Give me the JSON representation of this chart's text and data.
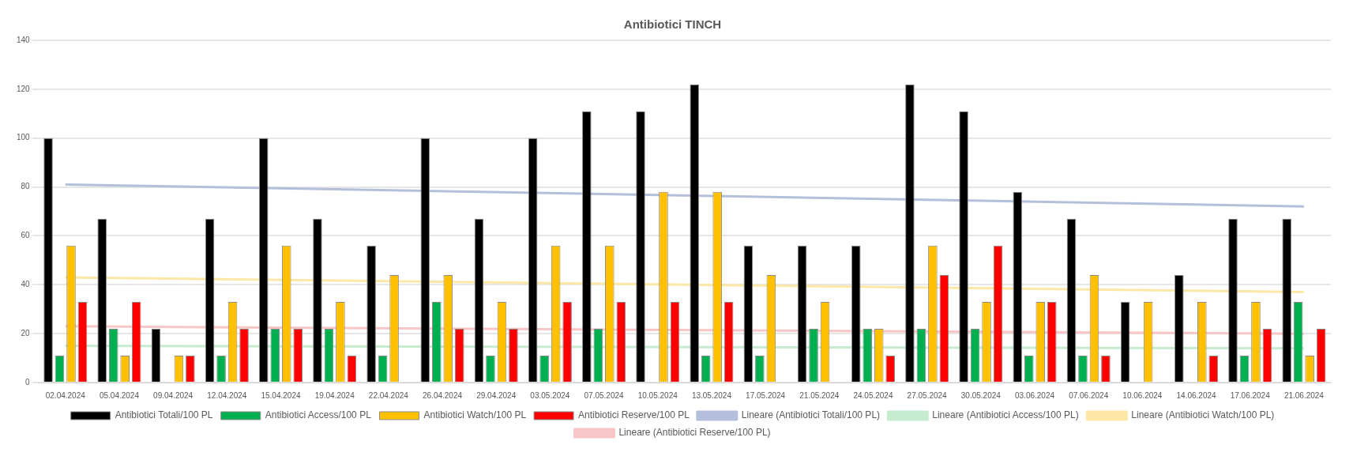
{
  "chart_data": {
    "type": "bar",
    "title": "Antibiotici TINCH",
    "categories": [
      "02.04.2024",
      "05.04.2024",
      "09.04.2024",
      "12.04.2024",
      "15.04.2024",
      "19.04.2024",
      "22.04.2024",
      "26.04.2024",
      "29.04.2024",
      "03.05.2024",
      "07.05.2024",
      "10.05.2024",
      "13.05.2024",
      "17.05.2024",
      "21.05.2024",
      "24.05.2024",
      "27.05.2024",
      "30.05.2024",
      "03.06.2024",
      "07.06.2024",
      "10.06.2024",
      "14.06.2024",
      "17.06.2024",
      "21.06.2024"
    ],
    "series": [
      {
        "name": "Antibiotici Totali/100 PL",
        "color": "#000000",
        "values": [
          100,
          67,
          22,
          67,
          100,
          67,
          56,
          100,
          67,
          100,
          111,
          111,
          122,
          56,
          56,
          56,
          122,
          111,
          78,
          67,
          33,
          44,
          67,
          67
        ]
      },
      {
        "name": "Antibiotici Access/100 PL",
        "color": "#00b050",
        "values": [
          11,
          22,
          0,
          11,
          22,
          22,
          11,
          33,
          11,
          11,
          22,
          0,
          11,
          11,
          22,
          22,
          22,
          22,
          11,
          11,
          0,
          0,
          11,
          33
        ]
      },
      {
        "name": "Antibiotici Watch/100 PL",
        "color": "#ffc000",
        "values": [
          56,
          11,
          11,
          33,
          56,
          33,
          44,
          44,
          33,
          56,
          56,
          78,
          78,
          44,
          33,
          22,
          56,
          33,
          33,
          44,
          33,
          33,
          33,
          11
        ]
      },
      {
        "name": "Antibiotici Reserve/100 PL",
        "color": "#ff0000",
        "values": [
          33,
          33,
          11,
          22,
          22,
          11,
          0,
          22,
          22,
          33,
          33,
          33,
          33,
          0,
          0,
          11,
          44,
          56,
          33,
          11,
          0,
          11,
          22,
          22
        ]
      },
      {
        "name": "Lineare (Antibiotici Totali/100 PL)",
        "type": "line",
        "color": "#b4bfdc",
        "x": [
          "02.04.2024",
          "21.06.2024"
        ],
        "values": [
          81,
          72
        ]
      },
      {
        "name": "Lineare (Antibiotici Access/100 PL)",
        "type": "line",
        "color": "#c6ebcf",
        "x": [
          "02.04.2024",
          "21.06.2024"
        ],
        "values": [
          15,
          14
        ]
      },
      {
        "name": "Lineare (Antibiotici Watch/100 PL)",
        "type": "line",
        "color": "#fde7a6",
        "x": [
          "02.04.2024",
          "21.06.2024"
        ],
        "values": [
          43,
          37
        ]
      },
      {
        "name": "Lineare (Antibiotici Reserve/100 PL)",
        "type": "line",
        "color": "#f8c6c6",
        "x": [
          "02.04.2024",
          "21.06.2024"
        ],
        "values": [
          23,
          20
        ]
      }
    ],
    "ylim": [
      0,
      140
    ],
    "yticks": [
      0,
      20,
      40,
      60,
      80,
      100,
      120,
      140
    ],
    "grid": "y",
    "legend": "bottom"
  }
}
